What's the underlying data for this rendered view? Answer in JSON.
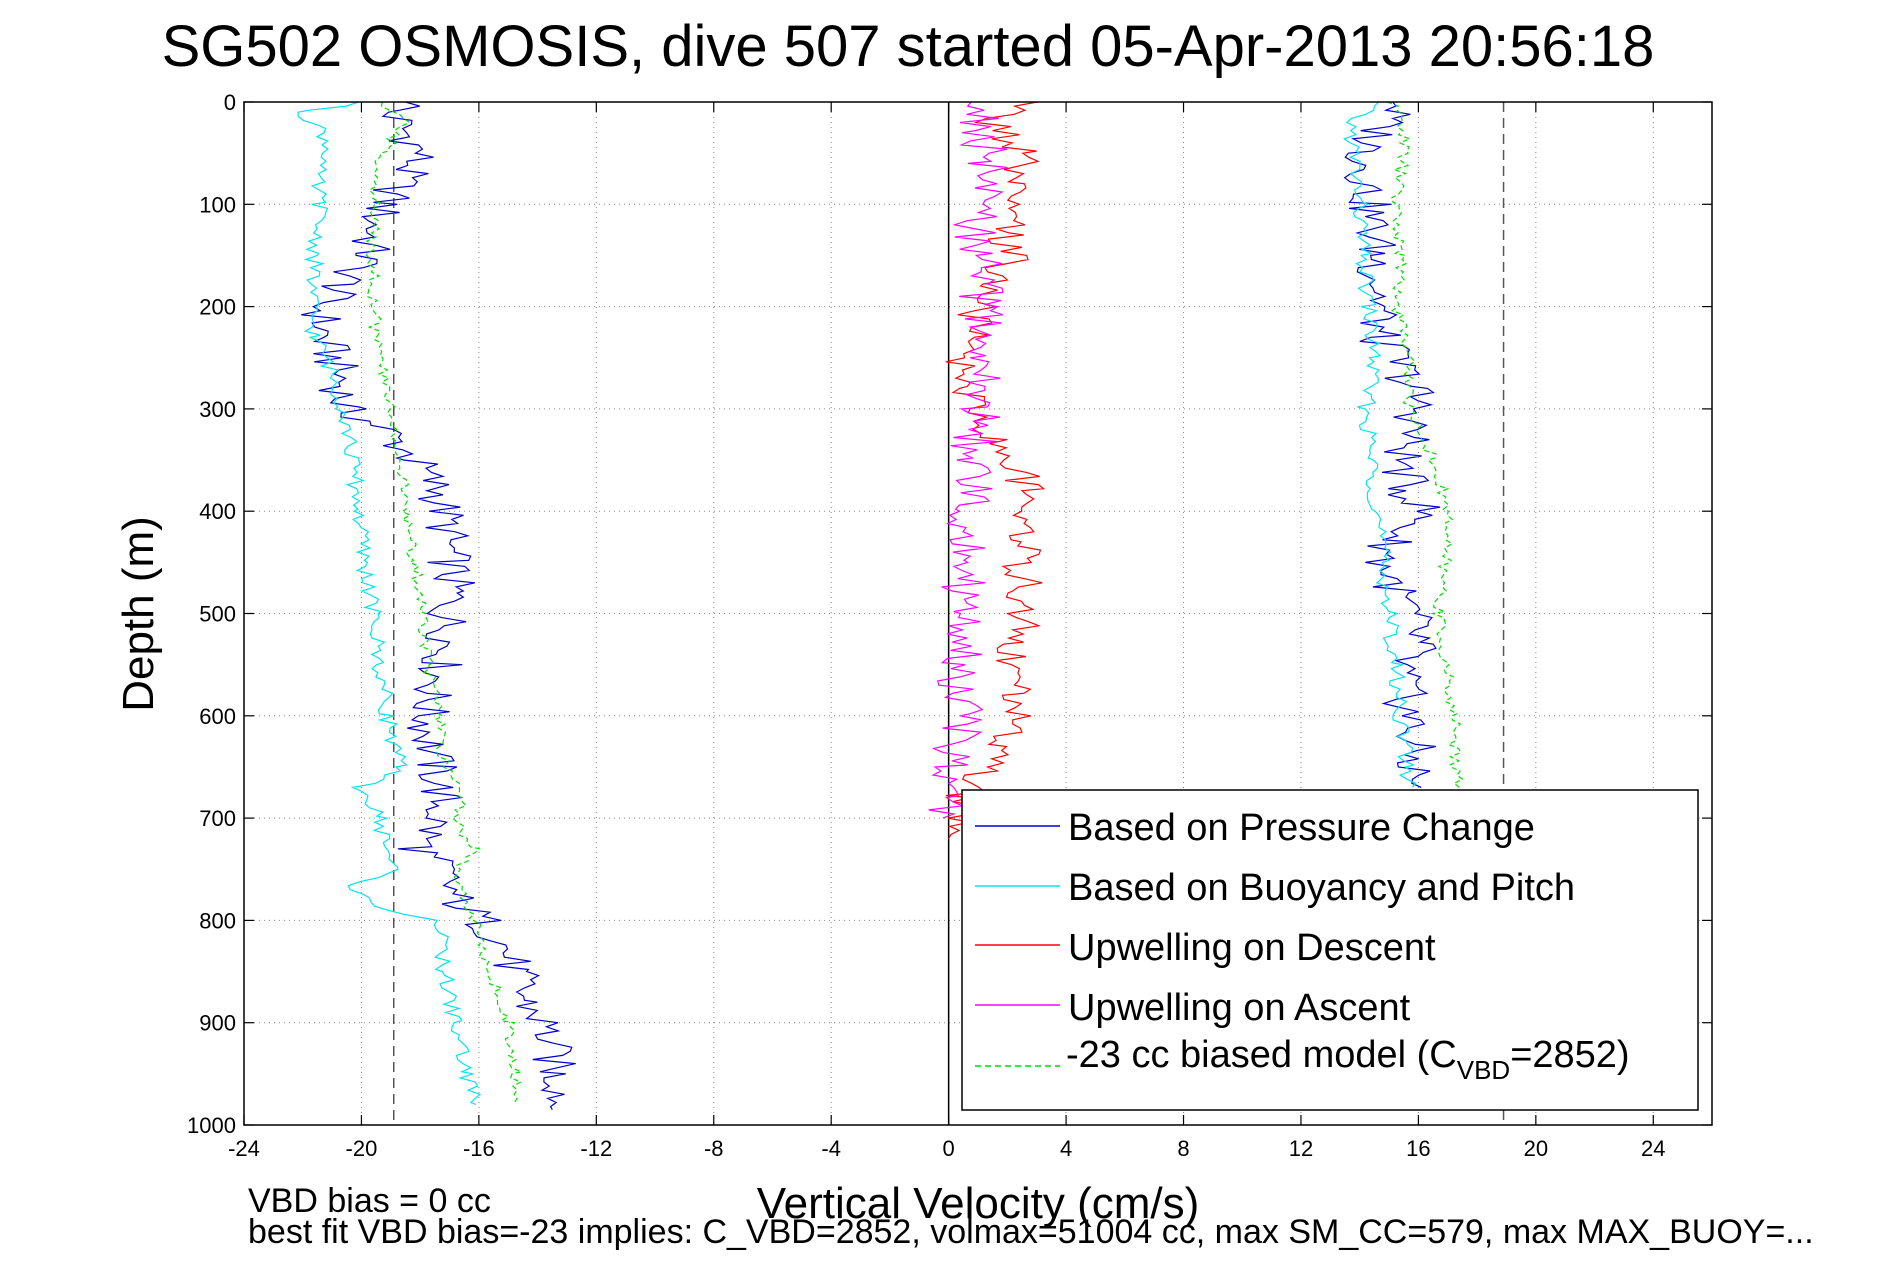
{
  "title": "SG502 OSMOSIS, dive 507 started 05-Apr-2013 20:56:18",
  "footer": {
    "line1": "VBD bias = 0 cc",
    "line2": "best fit VBD bias=-23 implies: C_VBD=2852, volmax=51004 cc, max SM_CC=579, max MAX_BUOY=..."
  },
  "legend_vbd": {
    "prefix": "-23 cc biased model (C",
    "sub": "VBD",
    "suffix": "=2852)"
  },
  "colors": {
    "pressure": "#0000cc",
    "buoyancy": "#00e5ee",
    "descent": "#ff0000",
    "ascent": "#ff00ff",
    "model": "#00dd00",
    "grid": "#888888",
    "reference_lines": "#555555"
  },
  "chart_data": {
    "type": "line",
    "title": "SG502 OSMOSIS, dive 507 started 05-Apr-2013 20:56:18",
    "xlabel": "Vertical Velocity (cm/s)",
    "ylabel": "Depth (m)",
    "xlim": [
      -24,
      26
    ],
    "ylim": [
      0,
      1000
    ],
    "y_reversed": true,
    "grid": true,
    "legend_position": "lower-right",
    "xticks": [
      -24,
      -20,
      -16,
      -12,
      -8,
      -4,
      0,
      4,
      8,
      12,
      16,
      20,
      24
    ],
    "yticks": [
      0,
      100,
      200,
      300,
      400,
      500,
      600,
      700,
      800,
      900,
      1000
    ],
    "reference_lines": [
      {
        "style": "dashed",
        "x": -18.9
      },
      {
        "style": "dashed",
        "x": 18.9
      },
      {
        "style": "solid",
        "x": 0
      }
    ],
    "series": [
      {
        "name": "Based on Pressure Change",
        "key": "pressure",
        "descent": {
          "depth": [
            0,
            10,
            30,
            50,
            70,
            100,
            120,
            150,
            180,
            200,
            230,
            250,
            270,
            300,
            320,
            350,
            380,
            400,
            420,
            450,
            480,
            500,
            520,
            550,
            580,
            600,
            620,
            650,
            680,
            700,
            730,
            750,
            780,
            800,
            820,
            850,
            880,
            900,
            920,
            950,
            970,
            985
          ],
          "velocity": [
            -18,
            -19,
            -18.5,
            -18,
            -18.5,
            -19.2,
            -19.6,
            -19.8,
            -20.7,
            -21.4,
            -21.3,
            -21,
            -20.7,
            -20.6,
            -19.2,
            -18.2,
            -17.4,
            -17.2,
            -17.1,
            -17.0,
            -16.9,
            -17.1,
            -17.0,
            -17.3,
            -17.6,
            -17.8,
            -17.7,
            -17.5,
            -17.3,
            -17.4,
            -18.0,
            -17.3,
            -16.8,
            -15.9,
            -15.2,
            -14.8,
            -14.4,
            -13.8,
            -13.6,
            -13.4,
            -13.1,
            -13.5
          ]
        },
        "ascent": {
          "depth": [
            0,
            20,
            50,
            100,
            150,
            200,
            230,
            250,
            280,
            300,
            330,
            350,
            380,
            400,
            430,
            450,
            480,
            500,
            530,
            550,
            580,
            600,
            630,
            650,
            670
          ],
          "velocity": [
            15.5,
            14.8,
            14.2,
            14.3,
            14.6,
            14.7,
            14.6,
            15.2,
            15.8,
            16.0,
            15.7,
            15.4,
            15.6,
            16.2,
            15.1,
            14.8,
            15.3,
            15.7,
            16.0,
            15.4,
            15.5,
            15.7,
            15.8,
            15.8,
            16.1
          ]
        }
      },
      {
        "name": "Based on Buoyancy and Pitch",
        "key": "buoyancy",
        "descent": {
          "depth": [
            0,
            10,
            30,
            50,
            70,
            100,
            150,
            200,
            230,
            250,
            300,
            350,
            400,
            450,
            500,
            550,
            600,
            650,
            670,
            700,
            750,
            770,
            790,
            800,
            850,
            900,
            950,
            980
          ],
          "velocity": [
            -20,
            -22,
            -21.3,
            -21.1,
            -21.6,
            -21.4,
            -21.6,
            -21.7,
            -21.6,
            -21.2,
            -20.6,
            -20.3,
            -20.1,
            -19.9,
            -19.6,
            -19.4,
            -19.1,
            -18.7,
            -20.0,
            -19.4,
            -18.9,
            -20.5,
            -19.0,
            -17.4,
            -17.2,
            -16.8,
            -16.4,
            -16.1
          ]
        },
        "ascent": {
          "depth": [
            0,
            20,
            50,
            100,
            150,
            200,
            250,
            300,
            350,
            400,
            450,
            500,
            550,
            600,
            650,
            670
          ],
          "velocity": [
            14.5,
            13.7,
            13.8,
            14.0,
            14.1,
            14.3,
            14.5,
            14.2,
            14.4,
            14.6,
            14.8,
            15.0,
            15.2,
            15.4,
            15.6,
            15.8
          ]
        }
      },
      {
        "name": "Upwelling on Descent",
        "key": "descent",
        "depth": [
          0,
          20,
          50,
          80,
          100,
          130,
          150,
          180,
          200,
          230,
          250,
          280,
          300,
          330,
          350,
          380,
          400,
          430,
          450,
          480,
          500,
          530,
          550,
          580,
          600,
          630,
          650,
          680,
          700,
          720
        ],
        "velocity": [
          2.5,
          1.5,
          2.5,
          2.0,
          2.0,
          1.9,
          2.2,
          1.4,
          1.0,
          0.7,
          0.4,
          0.6,
          1.0,
          1.5,
          2.2,
          2.6,
          2.9,
          2.6,
          2.4,
          2.6,
          2.5,
          2.3,
          2.0,
          2.3,
          2.2,
          1.7,
          1.4,
          0.5,
          0.1,
          0.0
        ]
      },
      {
        "name": "Upwelling on Ascent",
        "key": "ascent",
        "depth": [
          0,
          30,
          60,
          100,
          150,
          200,
          250,
          300,
          350,
          400,
          450,
          500,
          550,
          600,
          650,
          680,
          700
        ],
        "velocity": [
          1.0,
          1.1,
          1.3,
          0.9,
          1.0,
          1.2,
          1.1,
          1.0,
          0.8,
          0.8,
          0.5,
          0.6,
          0.3,
          0.4,
          0.1,
          0.0,
          -0.2
        ]
      },
      {
        "name": "-23 cc biased model",
        "key": "model",
        "descent": {
          "depth": [
            0,
            20,
            50,
            100,
            150,
            200,
            250,
            300,
            350,
            400,
            450,
            500,
            550,
            600,
            650,
            680,
            700,
            730,
            750,
            800,
            850,
            900,
            950,
            980
          ],
          "velocity": [
            -19.5,
            -18.5,
            -19.3,
            -19.6,
            -19.6,
            -19.6,
            -19.4,
            -19.0,
            -18.7,
            -18.5,
            -18.2,
            -17.9,
            -17.7,
            -17.4,
            -17.2,
            -16.5,
            -16.8,
            -16.2,
            -16.7,
            -16.2,
            -15.6,
            -15.0,
            -14.7,
            -14.8
          ]
        },
        "ascent": {
          "depth": [
            0,
            20,
            50,
            100,
            150,
            200,
            250,
            300,
            350,
            400,
            450,
            500,
            550,
            600,
            650,
            670
          ],
          "velocity": [
            15.0,
            15.5,
            15.5,
            15.2,
            15.4,
            15.3,
            15.7,
            15.7,
            16.5,
            17.0,
            16.9,
            16.7,
            16.9,
            17.2,
            17.3,
            17.4
          ]
        }
      }
    ]
  }
}
